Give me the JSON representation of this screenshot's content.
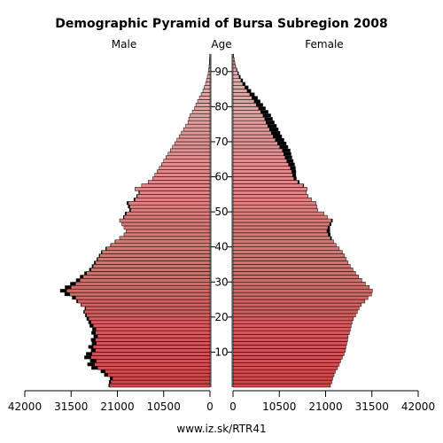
{
  "chart_data": {
    "type": "bar",
    "orientation": "horizontal",
    "title": "Demographic Pyramid of Bursa Subregion 2008",
    "left_label": "Male",
    "center_label": "Age",
    "right_label": "Female",
    "source": "www.iz.sk/RTR41",
    "x_ticks_left": [
      "42000",
      "31500",
      "21000",
      "10500",
      "0"
    ],
    "x_ticks_right": [
      "0",
      "10500",
      "21000",
      "31500",
      "42000"
    ],
    "x_tick_values": [
      42000,
      31500,
      21000,
      10500,
      0
    ],
    "xlim": [
      0,
      42000
    ],
    "age_ticks": [
      "10",
      "20",
      "30",
      "40",
      "50",
      "60",
      "70",
      "80",
      "90"
    ],
    "age_tick_values": [
      10,
      20,
      30,
      40,
      50,
      60,
      70,
      80,
      90
    ],
    "ylim": [
      0,
      95
    ],
    "age_groups": [
      0,
      1,
      2,
      3,
      4,
      5,
      6,
      7,
      8,
      9,
      10,
      11,
      12,
      13,
      14,
      15,
      16,
      17,
      18,
      19,
      20,
      21,
      22,
      23,
      24,
      25,
      26,
      27,
      28,
      29,
      30,
      31,
      32,
      33,
      34,
      35,
      36,
      37,
      38,
      39,
      40,
      41,
      42,
      43,
      44,
      45,
      46,
      47,
      48,
      49,
      50,
      51,
      52,
      53,
      54,
      55,
      56,
      57,
      58,
      59,
      60,
      61,
      62,
      63,
      64,
      65,
      66,
      67,
      68,
      69,
      70,
      71,
      72,
      73,
      74,
      75,
      76,
      77,
      78,
      79,
      80,
      81,
      82,
      83,
      84,
      85,
      86,
      87,
      88,
      89,
      90,
      91,
      92,
      93,
      94
    ],
    "series": [
      {
        "name": "Male",
        "values": [
          22800,
          22500,
          22100,
          23200,
          23800,
          25500,
          26200,
          25800,
          27000,
          26800,
          26000,
          26500,
          25800,
          26000,
          25500,
          26000,
          25900,
          26500,
          27000,
          27500,
          28000,
          28500,
          28200,
          29200,
          30000,
          30500,
          31800,
          32500,
          31500,
          30500,
          29500,
          28800,
          28000,
          27000,
          26500,
          26000,
          25500,
          25000,
          24500,
          23500,
          22500,
          21500,
          20500,
          19500,
          19000,
          19500,
          20000,
          20500,
          19500,
          19000,
          18000,
          18200,
          18500,
          17000,
          16500,
          16000,
          17000,
          15500,
          14000,
          13000,
          12500,
          12000,
          11500,
          11000,
          10500,
          10000,
          9500,
          9000,
          8500,
          8000,
          7500,
          7000,
          6500,
          6000,
          5500,
          5000,
          4800,
          4500,
          4000,
          3500,
          3200,
          2800,
          2400,
          2000,
          1600,
          1300,
          1000,
          800,
          600,
          400,
          300,
          200,
          150,
          100,
          60
        ],
        "surplus": [
          200,
          400,
          600,
          800,
          1000,
          1400,
          1600,
          1400,
          1500,
          1300,
          1000,
          1100,
          1000,
          1000,
          900,
          900,
          800,
          800,
          600,
          500,
          300,
          200,
          200,
          100,
          300,
          800,
          1200,
          1500,
          1400,
          1200,
          900,
          700,
          500,
          400,
          300,
          300,
          200,
          200,
          200,
          200,
          100,
          100,
          0,
          0,
          0,
          0,
          0,
          0,
          200,
          300,
          300,
          400,
          400,
          300,
          200,
          200,
          0,
          0,
          0,
          0,
          0,
          0,
          0,
          0,
          0,
          0,
          0,
          0,
          0,
          0,
          0,
          0,
          0,
          0,
          0,
          0,
          0,
          0,
          0,
          0,
          0,
          0,
          0,
          0,
          0,
          0,
          0,
          0,
          0,
          0,
          0,
          0,
          0,
          0,
          0
        ]
      },
      {
        "name": "Female",
        "values": [
          22100,
          22400,
          22600,
          22900,
          23200,
          23700,
          24100,
          24400,
          24800,
          25200,
          25500,
          25600,
          25800,
          26000,
          26100,
          26400,
          26600,
          26800,
          27000,
          27300,
          27800,
          28200,
          28600,
          29100,
          29900,
          30600,
          31400,
          31600,
          30900,
          30000,
          29200,
          28500,
          27800,
          27200,
          26600,
          26100,
          25700,
          25300,
          24800,
          24100,
          23400,
          22800,
          22100,
          21600,
          21300,
          21500,
          21900,
          22300,
          21400,
          20600,
          19200,
          19000,
          18800,
          17800,
          17000,
          16600,
          16800,
          15900,
          14700,
          13800,
          13500,
          13300,
          13000,
          12600,
          12200,
          11800,
          11500,
          11200,
          10600,
          10100,
          9600,
          9100,
          8700,
          8300,
          7900,
          7500,
          7200,
          6800,
          6300,
          5800,
          5300,
          4800,
          4300,
          3800,
          3200,
          2700,
          2200,
          1800,
          1400,
          1100,
          800,
          550,
          380,
          250,
          150
        ],
        "surplus": [
          0,
          0,
          0,
          0,
          0,
          0,
          0,
          0,
          0,
          0,
          0,
          0,
          0,
          0,
          0,
          0,
          0,
          0,
          0,
          0,
          0,
          0,
          0,
          0,
          0,
          0,
          0,
          0,
          0,
          0,
          0,
          0,
          0,
          0,
          0,
          0,
          0,
          0,
          0,
          0,
          0,
          0,
          300,
          500,
          700,
          500,
          400,
          300,
          0,
          0,
          0,
          0,
          0,
          0,
          0,
          0,
          0,
          200,
          400,
          600,
          800,
          1000,
          1200,
          1400,
          1500,
          1600,
          1700,
          1800,
          1900,
          2000,
          2000,
          2000,
          2000,
          2000,
          2000,
          1900,
          1800,
          1800,
          1700,
          1600,
          1500,
          1400,
          1300,
          1100,
          900,
          800,
          600,
          450,
          300,
          200,
          150,
          100,
          60,
          40,
          20
        ]
      }
    ],
    "colors": {
      "bar_top": "#e8b0b0",
      "bar_bottom": "#d04848",
      "surplus": "#000000",
      "bar_stroke": "#000000"
    },
    "grid": false
  }
}
